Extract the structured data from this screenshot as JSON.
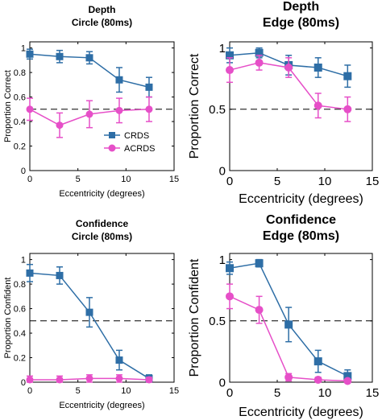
{
  "series_colors": [
    "#2e6ea6",
    "#e64fc8"
  ],
  "chart_data": [
    {
      "type": "line",
      "title_lines": [
        "Depth",
        "Circle (80ms)"
      ],
      "xlabel": "Eccentricity (degrees)",
      "ylabel": "Proportion Correct",
      "xlim": [
        0,
        15
      ],
      "ylim": [
        0,
        1.05
      ],
      "xticks": [
        0,
        5,
        10,
        15
      ],
      "yticks": [
        0,
        0.2,
        0.4,
        0.6,
        0.8,
        1
      ],
      "ytick_labels": [
        "0",
        "0.2",
        "0.4",
        "0.6",
        "0.8",
        "1"
      ],
      "reference_line": 0.5,
      "legend": {
        "position": "bottom-right",
        "entries": [
          "CRDS",
          "ACRDS"
        ]
      },
      "x": [
        0,
        3.1,
        6.2,
        9.3,
        12.4
      ],
      "series": [
        {
          "name": "CRDS",
          "marker": "square",
          "values": [
            0.95,
            0.93,
            0.92,
            0.74,
            0.68
          ],
          "err": [
            0.04,
            0.05,
            0.05,
            0.1,
            0.08
          ]
        },
        {
          "name": "ACRDS",
          "marker": "circle",
          "values": [
            0.5,
            0.37,
            0.46,
            0.49,
            0.5
          ],
          "err": [
            0.09,
            0.1,
            0.11,
            0.1,
            0.1
          ]
        }
      ]
    },
    {
      "type": "line",
      "title_lines": [
        "Depth",
        "Edge (80ms)"
      ],
      "xlabel": "Eccentricity (degrees)",
      "ylabel": "Proportion Correct",
      "xlim": [
        0,
        15
      ],
      "ylim": [
        0,
        1.05
      ],
      "xticks": [
        0,
        5,
        10,
        15
      ],
      "yticks": [
        0,
        0.5,
        1
      ],
      "ytick_labels": [
        "0",
        "0.5",
        "1"
      ],
      "reference_line": 0.5,
      "x": [
        0,
        3.1,
        6.2,
        9.3,
        12.4
      ],
      "series": [
        {
          "name": "CRDS",
          "marker": "square",
          "values": [
            0.94,
            0.96,
            0.86,
            0.84,
            0.77
          ],
          "err": [
            0.06,
            0.04,
            0.08,
            0.08,
            0.09
          ]
        },
        {
          "name": "ACRDS",
          "marker": "circle",
          "values": [
            0.82,
            0.88,
            0.84,
            0.53,
            0.5
          ],
          "err": [
            0.1,
            0.06,
            0.08,
            0.1,
            0.1
          ]
        }
      ]
    },
    {
      "type": "line",
      "title_lines": [
        "Confidence",
        "Circle (80ms)"
      ],
      "xlabel": "Eccentricity (degrees)",
      "ylabel": "Proportion Confident",
      "xlim": [
        0,
        15
      ],
      "ylim": [
        0,
        1.05
      ],
      "xticks": [
        0,
        5,
        10,
        15
      ],
      "yticks": [
        0,
        0.2,
        0.4,
        0.6,
        0.8,
        1
      ],
      "ytick_labels": [
        "0",
        "0.2",
        "0.4",
        "0.6",
        "0.8",
        "1"
      ],
      "reference_line": 0.5,
      "x": [
        0,
        3.1,
        6.2,
        9.3,
        12.4
      ],
      "series": [
        {
          "name": "CRDS",
          "marker": "square",
          "values": [
            0.89,
            0.87,
            0.57,
            0.18,
            0.03
          ],
          "err": [
            0.07,
            0.07,
            0.12,
            0.08,
            0.03
          ]
        },
        {
          "name": "ACRDS",
          "marker": "circle",
          "values": [
            0.02,
            0.02,
            0.03,
            0.03,
            0.02
          ],
          "err": [
            0.03,
            0.03,
            0.03,
            0.03,
            0.02
          ]
        }
      ]
    },
    {
      "type": "line",
      "title_lines": [
        "Confidence",
        "Edge (80ms)"
      ],
      "xlabel": "Eccentricity (degrees)",
      "ylabel": "Proportion Confident",
      "xlim": [
        0,
        15
      ],
      "ylim": [
        0,
        1.05
      ],
      "xticks": [
        0,
        5,
        10,
        15
      ],
      "yticks": [
        0,
        0.5,
        1
      ],
      "ytick_labels": [
        "0",
        "0.5",
        "1"
      ],
      "reference_line": 0.5,
      "x": [
        0,
        3.1,
        6.2,
        9.3,
        12.4
      ],
      "series": [
        {
          "name": "CRDS",
          "marker": "square",
          "values": [
            0.93,
            0.97,
            0.47,
            0.17,
            0.05
          ],
          "err": [
            0.05,
            0.03,
            0.14,
            0.09,
            0.05
          ]
        },
        {
          "name": "ACRDS",
          "marker": "circle",
          "values": [
            0.7,
            0.59,
            0.04,
            0.02,
            0.01
          ],
          "err": [
            0.1,
            0.11,
            0.03,
            0.02,
            0.01
          ]
        }
      ]
    }
  ]
}
